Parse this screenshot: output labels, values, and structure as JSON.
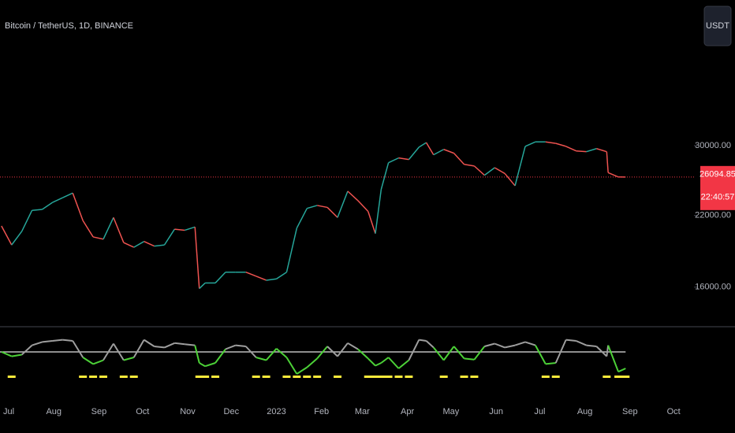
{
  "chart_data": {
    "type": "line",
    "title": "Bitcoin / TetherUS, 1D, BINANCE",
    "currency": "USDT",
    "countdown": "22:40:57",
    "log_scale": true,
    "up_color": "#26a69a",
    "down_color": "#ef5350",
    "last_price_color": "#f23645",
    "xlim": [
      "2022-06-25",
      "2023-10-15"
    ],
    "xticks": [
      {
        "value": "2022-07-01",
        "label": "Jul"
      },
      {
        "value": "2022-08-01",
        "label": "Aug"
      },
      {
        "value": "2022-09-01",
        "label": "Sep"
      },
      {
        "value": "2022-10-01",
        "label": "Oct"
      },
      {
        "value": "2022-11-01",
        "label": "Nov"
      },
      {
        "value": "2022-12-01",
        "label": "Dec"
      },
      {
        "value": "2023-01-01",
        "label": "2023"
      },
      {
        "value": "2023-02-01",
        "label": "Feb"
      },
      {
        "value": "2023-03-01",
        "label": "Mar"
      },
      {
        "value": "2023-04-01",
        "label": "Apr"
      },
      {
        "value": "2023-05-01",
        "label": "May"
      },
      {
        "value": "2023-06-01",
        "label": "Jun"
      },
      {
        "value": "2023-07-01",
        "label": "Jul"
      },
      {
        "value": "2023-08-01",
        "label": "Aug"
      },
      {
        "value": "2023-09-01",
        "label": "Sep"
      },
      {
        "value": "2023-10-01",
        "label": "Oct"
      }
    ],
    "ylim": [
      13900,
      55300
    ],
    "yticks": [
      {
        "value": 16000,
        "label": "16000.00"
      },
      {
        "value": 22000,
        "label": "22000.00"
      },
      {
        "value": 30000,
        "label": "30000.00"
      }
    ],
    "x": [
      "2022-06-26",
      "2022-07-03",
      "2022-07-10",
      "2022-07-17",
      "2022-07-24",
      "2022-07-31",
      "2022-08-07",
      "2022-08-14",
      "2022-08-21",
      "2022-08-28",
      "2022-09-04",
      "2022-09-11",
      "2022-09-18",
      "2022-09-25",
      "2022-10-02",
      "2022-10-09",
      "2022-10-16",
      "2022-10-23",
      "2022-10-30",
      "2022-11-06",
      "2022-11-09",
      "2022-11-13",
      "2022-11-20",
      "2022-11-27",
      "2022-12-04",
      "2022-12-11",
      "2022-12-18",
      "2022-12-25",
      "2023-01-01",
      "2023-01-08",
      "2023-01-15",
      "2023-01-22",
      "2023-01-29",
      "2023-02-05",
      "2023-02-12",
      "2023-02-19",
      "2023-02-26",
      "2023-03-05",
      "2023-03-10",
      "2023-03-14",
      "2023-03-19",
      "2023-03-26",
      "2023-04-02",
      "2023-04-09",
      "2023-04-14",
      "2023-04-19",
      "2023-04-26",
      "2023-05-03",
      "2023-05-10",
      "2023-05-17",
      "2023-05-24",
      "2023-05-31",
      "2023-06-07",
      "2023-06-14",
      "2023-06-21",
      "2023-06-28",
      "2023-07-05",
      "2023-07-12",
      "2023-07-19",
      "2023-07-26",
      "2023-08-02",
      "2023-08-09",
      "2023-08-16",
      "2023-08-17",
      "2023-08-24",
      "2023-08-29"
    ],
    "series": [
      {
        "name": "Price",
        "values": [
          21000,
          19300,
          20500,
          22500,
          22600,
          23300,
          23800,
          24300,
          21500,
          20000,
          19800,
          21800,
          19500,
          19100,
          19600,
          19200,
          19300,
          20700,
          20600,
          20900,
          15900,
          16300,
          16300,
          17100,
          17100,
          17100,
          16800,
          16500,
          16600,
          17100,
          20800,
          22700,
          23000,
          22800,
          21800,
          24500,
          23500,
          22400,
          20300,
          24700,
          27800,
          28400,
          28200,
          29800,
          30400,
          28800,
          29500,
          29000,
          27600,
          27400,
          26300,
          27200,
          26500,
          25100,
          29900,
          30500,
          30500,
          30300,
          29900,
          29300,
          29200,
          29600,
          29200,
          26600,
          26100,
          26094.85
        ]
      },
      {
        "name": "Oscillator",
        "axis": "y2",
        "values": [
          50,
          42,
          45,
          62,
          68,
          70,
          72,
          70,
          40,
          28,
          35,
          65,
          35,
          40,
          72,
          60,
          58,
          66,
          64,
          62,
          30,
          24,
          30,
          55,
          62,
          60,
          40,
          35,
          56,
          40,
          10,
          22,
          38,
          60,
          42,
          66,
          55,
          38,
          25,
          30,
          40,
          20,
          35,
          72,
          70,
          58,
          35,
          60,
          38,
          36,
          60,
          65,
          58,
          62,
          68,
          62,
          28,
          30,
          72,
          70,
          62,
          60,
          42,
          62,
          14,
          20
        ]
      }
    ],
    "y2lim": [
      0,
      100
    ],
    "level": 50,
    "signal_level": 45,
    "above_color": "#9e9e9e",
    "below_color": "#4cd137",
    "signal_color": "#ffeb3b"
  }
}
